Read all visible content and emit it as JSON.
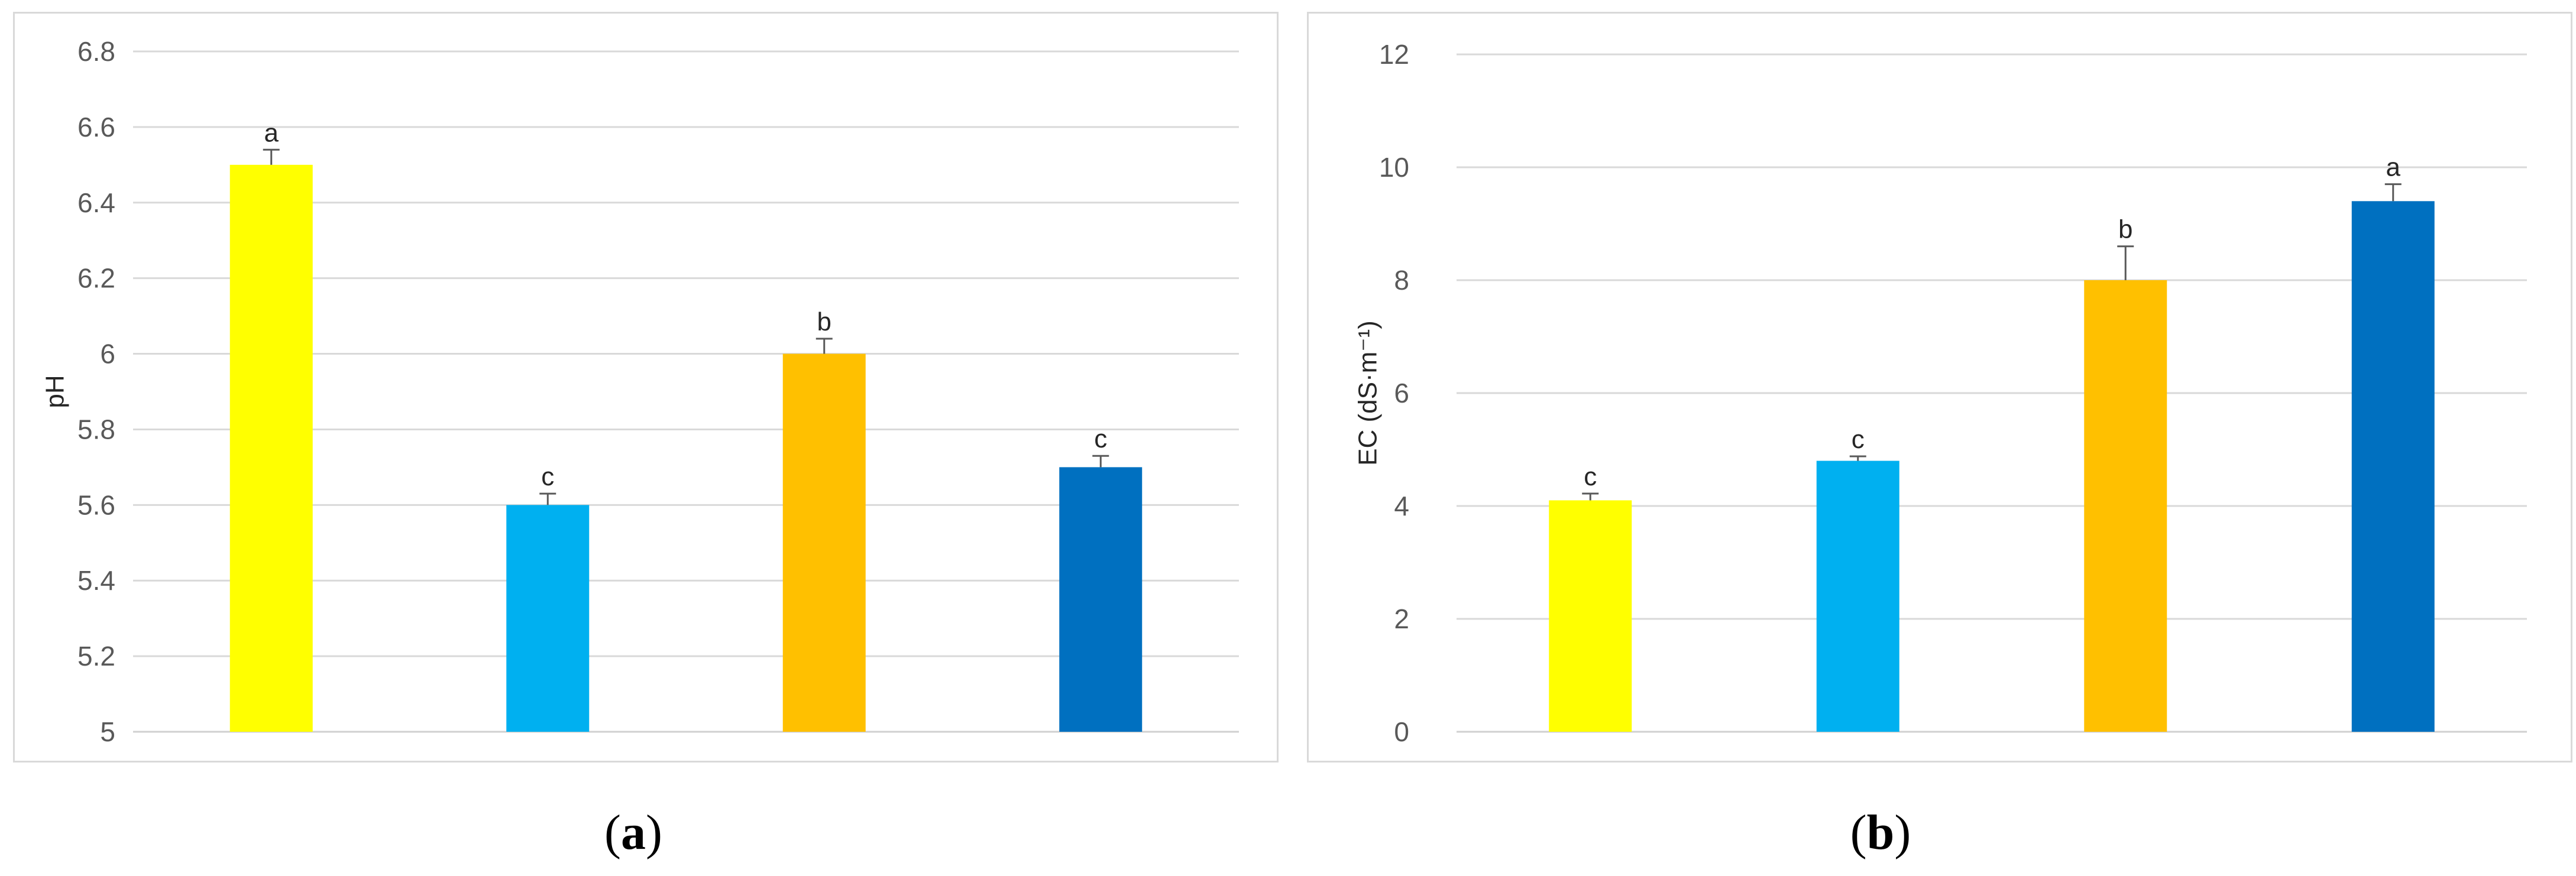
{
  "chart_data": [
    {
      "type": "bar",
      "panel_label": "a",
      "title": "",
      "xlabel": "",
      "ylabel": "pH",
      "ylim": [
        5,
        6.8
      ],
      "yticks": [
        "5",
        "5.2",
        "5.4",
        "5.6",
        "5.8",
        "6",
        "6.2",
        "6.4",
        "6.6",
        "6.8"
      ],
      "ytick_values": [
        5,
        5.2,
        5.4,
        5.6,
        5.8,
        6,
        6.2,
        6.4,
        6.6,
        6.8
      ],
      "grid": true,
      "legend": "none",
      "values": [
        6.5,
        5.6,
        6.0,
        5.7
      ],
      "errors": [
        0.04,
        0.03,
        0.04,
        0.03
      ],
      "letters": [
        "a",
        "c",
        "b",
        "c"
      ],
      "colors": [
        "#ffff00",
        "#00b0f0",
        "#ffc000",
        "#0070c0"
      ]
    },
    {
      "type": "bar",
      "panel_label": "b",
      "title": "",
      "xlabel": "",
      "ylabel": "EC (dS·m⁻¹)",
      "ylim": [
        0,
        12
      ],
      "yticks": [
        "0",
        "2",
        "4",
        "6",
        "8",
        "10",
        "12"
      ],
      "ytick_values": [
        0,
        2,
        4,
        6,
        8,
        10,
        12
      ],
      "grid": true,
      "legend": "none",
      "values": [
        4.1,
        4.8,
        8.0,
        9.4
      ],
      "errors": [
        0.12,
        0.08,
        0.6,
        0.3
      ],
      "letters": [
        "c",
        "c",
        "b",
        "a"
      ],
      "colors": [
        "#ffff00",
        "#00b0f0",
        "#ffc000",
        "#0070c0"
      ]
    }
  ],
  "captions": {
    "a_open": "(",
    "a_letter": "a",
    "a_close": ")",
    "b_open": "(",
    "b_letter": "b",
    "b_close": ")"
  }
}
